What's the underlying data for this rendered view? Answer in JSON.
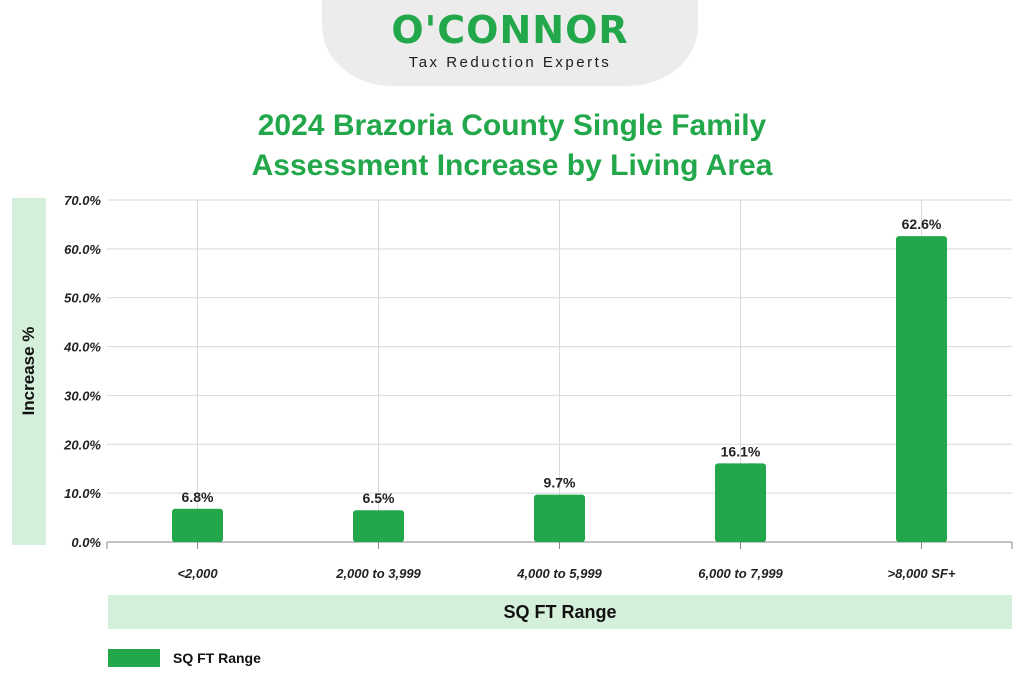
{
  "logo": {
    "brand": "O'CONNOR",
    "tagline": "Tax Reduction Experts"
  },
  "colors": {
    "accent": "#22a84a",
    "label_bg": "#d5f0da"
  },
  "chart_data": {
    "type": "bar",
    "title_line1": "2024 Brazoria County Single Family",
    "title_line2": "Assessment Increase by Living Area",
    "xlabel": "SQ FT Range",
    "ylabel": "Increase %",
    "categories": [
      "<2,000",
      "2,000 to 3,999",
      "4,000 to 5,999",
      "6,000 to 7,999",
      ">8,000 SF+"
    ],
    "series": [
      {
        "name": "SQ FT Range",
        "values": [
          6.8,
          6.5,
          9.7,
          16.1,
          62.6
        ]
      }
    ],
    "value_labels": [
      "6.8%",
      "6.5%",
      "9.7%",
      "16.1%",
      "62.6%"
    ],
    "ylim": [
      0,
      70
    ],
    "yticks": [
      "0.0%",
      "10.0%",
      "20.0%",
      "30.0%",
      "40.0%",
      "50.0%",
      "60.0%",
      "70.0%"
    ],
    "grid": true,
    "legend": "bottom-left"
  }
}
